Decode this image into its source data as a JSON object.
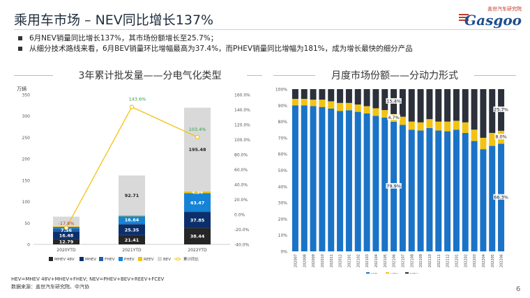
{
  "header": {
    "title": "乘用车市场 – NEV同比增长137%",
    "logo_cn": "盖世汽车研究院",
    "logo_en": "Gasgoo"
  },
  "bullets": [
    "6月NEV销量同比增长137%，其市场份额增长至25.7%；",
    "从细分技术路线来看，6月BEV销量环比增幅最高为37.4%，而PHEV销量同比增幅为181%，成为增长最快的细分产品"
  ],
  "chart_data": [
    {
      "type": "bar",
      "stacked": true,
      "title": "3年累计批发量——分电气化类型",
      "ylabel": "万辆",
      "categories": [
        "2020YTD",
        "2021YTD",
        "2022YTD"
      ],
      "ylim": [
        0,
        350
      ],
      "yticks": [
        "0",
        "50",
        "100",
        "150",
        "200",
        "250",
        "300",
        "350"
      ],
      "y2lim": [
        -40,
        160
      ],
      "y2ticks": [
        "-40.0%",
        "-20.0%",
        "0.0%",
        "20.0%",
        "40.0%",
        "60.0%",
        "80.0%",
        "100.0%",
        "120.0%",
        "140.0%",
        "160.0%"
      ],
      "series": [
        {
          "name": "MHEV 48V",
          "color": "#262626",
          "values": [
            12.79,
            21.41,
            38.44
          ],
          "labels": [
            "12.79",
            "21.41",
            "38.44"
          ],
          "label_color": "#ffffff"
        },
        {
          "name": "MHEV",
          "color": "#0b2f6b",
          "values": [
            16.48,
            25.35,
            37.85
          ],
          "labels": [
            "16.48",
            "25.35",
            "37.85"
          ],
          "label_color": "#ffffff"
        },
        {
          "name": "FHEV",
          "color": "#1f5faa",
          "values": [
            7.56,
            2.5,
            0.0
          ],
          "labels": [
            "7.56",
            "",
            ""
          ],
          "label_color": "#ffffff"
        },
        {
          "name": "PHEV",
          "color": "#1583d6",
          "values": [
            4.0,
            16.64,
            43.47
          ],
          "labels": [
            "",
            "16.64",
            "43.47"
          ],
          "label_color": "#ffffff"
        },
        {
          "name": "REEV",
          "color": "#f2c314",
          "values": [
            1.5,
            2.5,
            4.34
          ],
          "labels": [
            "",
            "",
            "4.34"
          ],
          "label_color": "#ffffff"
        },
        {
          "name": "BEV",
          "color": "#d9d9d9",
          "values": [
            22.5,
            92.71,
            195.48
          ],
          "labels": [
            "",
            "92.71",
            "195.48"
          ],
          "label_color": "#222222"
        }
      ],
      "line": {
        "name": "累计同比",
        "color": "#f2c314",
        "values": [
          -17.8,
          143.6,
          103.4
        ],
        "labels": [
          "-17.8%",
          "143.6%",
          "103.4%"
        ],
        "label_colors": [
          "#c0392b",
          "#2e9e3e",
          "#2e9e3e"
        ]
      },
      "legend_position": "bottom"
    },
    {
      "type": "bar",
      "stacked": true,
      "percent": true,
      "title": "月度市场份额——分动力形式",
      "categories": [
        "202007",
        "202008",
        "202009",
        "202010",
        "202011",
        "202012",
        "202101",
        "202102",
        "202103",
        "202104",
        "202105",
        "202106",
        "202107",
        "202108",
        "202109",
        "202110",
        "202111",
        "202112",
        "202201",
        "202202",
        "202203",
        "202204",
        "202205",
        "202206"
      ],
      "ylim": [
        0,
        100
      ],
      "yticks": [
        "0%",
        "10%",
        "20%",
        "30%",
        "40%",
        "50%",
        "60%",
        "70%",
        "80%",
        "90%",
        "100%"
      ],
      "series": [
        {
          "name": "ICE",
          "color": "#1a73c7",
          "values": [
            90,
            90,
            89.5,
            89,
            88,
            86.5,
            87,
            86,
            85,
            83.5,
            82.5,
            79.9,
            78,
            75,
            74.5,
            76,
            74.5,
            74,
            75,
            73,
            68,
            63,
            65,
            66.3
          ]
        },
        {
          "name": "HEV",
          "color": "#f2c314",
          "values": [
            4,
            4,
            4,
            4.5,
            4.5,
            5,
            4.5,
            4.5,
            4.5,
            4.7,
            4.6,
            4.7,
            5,
            5,
            5,
            5.5,
            5.5,
            6,
            5.5,
            6.5,
            7,
            7,
            8,
            8.0
          ]
        },
        {
          "name": "NEV",
          "color": "#2b303a",
          "values": [
            6,
            6,
            6.5,
            6.5,
            7.5,
            8.5,
            8.5,
            9.5,
            10.5,
            11.8,
            12.9,
            15.4,
            17,
            20,
            20.5,
            18.5,
            20,
            20,
            19.5,
            20.5,
            25,
            30,
            27,
            25.7
          ]
        }
      ],
      "annotations": [
        {
          "index": 11,
          "series": "NEV",
          "text": "15.4%"
        },
        {
          "index": 11,
          "series": "HEV",
          "text": "4.7%"
        },
        {
          "index": 11,
          "series": "ICE",
          "text": "79.9%"
        },
        {
          "index": 23,
          "series": "NEV",
          "text": "25.7%"
        },
        {
          "index": 23,
          "series": "HEV",
          "text": "8.0%"
        },
        {
          "index": 23,
          "series": "ICE",
          "text": "66.3%"
        }
      ],
      "legend_position": "bottom"
    }
  ],
  "footnote": {
    "line1": "HEV=MHEV 48V+MHEV+FHEV; NEV=PHEV+BEV+REEV+FCEV",
    "line2": "数据来源：盖世汽车研究院、中汽协"
  },
  "page_number": "6"
}
